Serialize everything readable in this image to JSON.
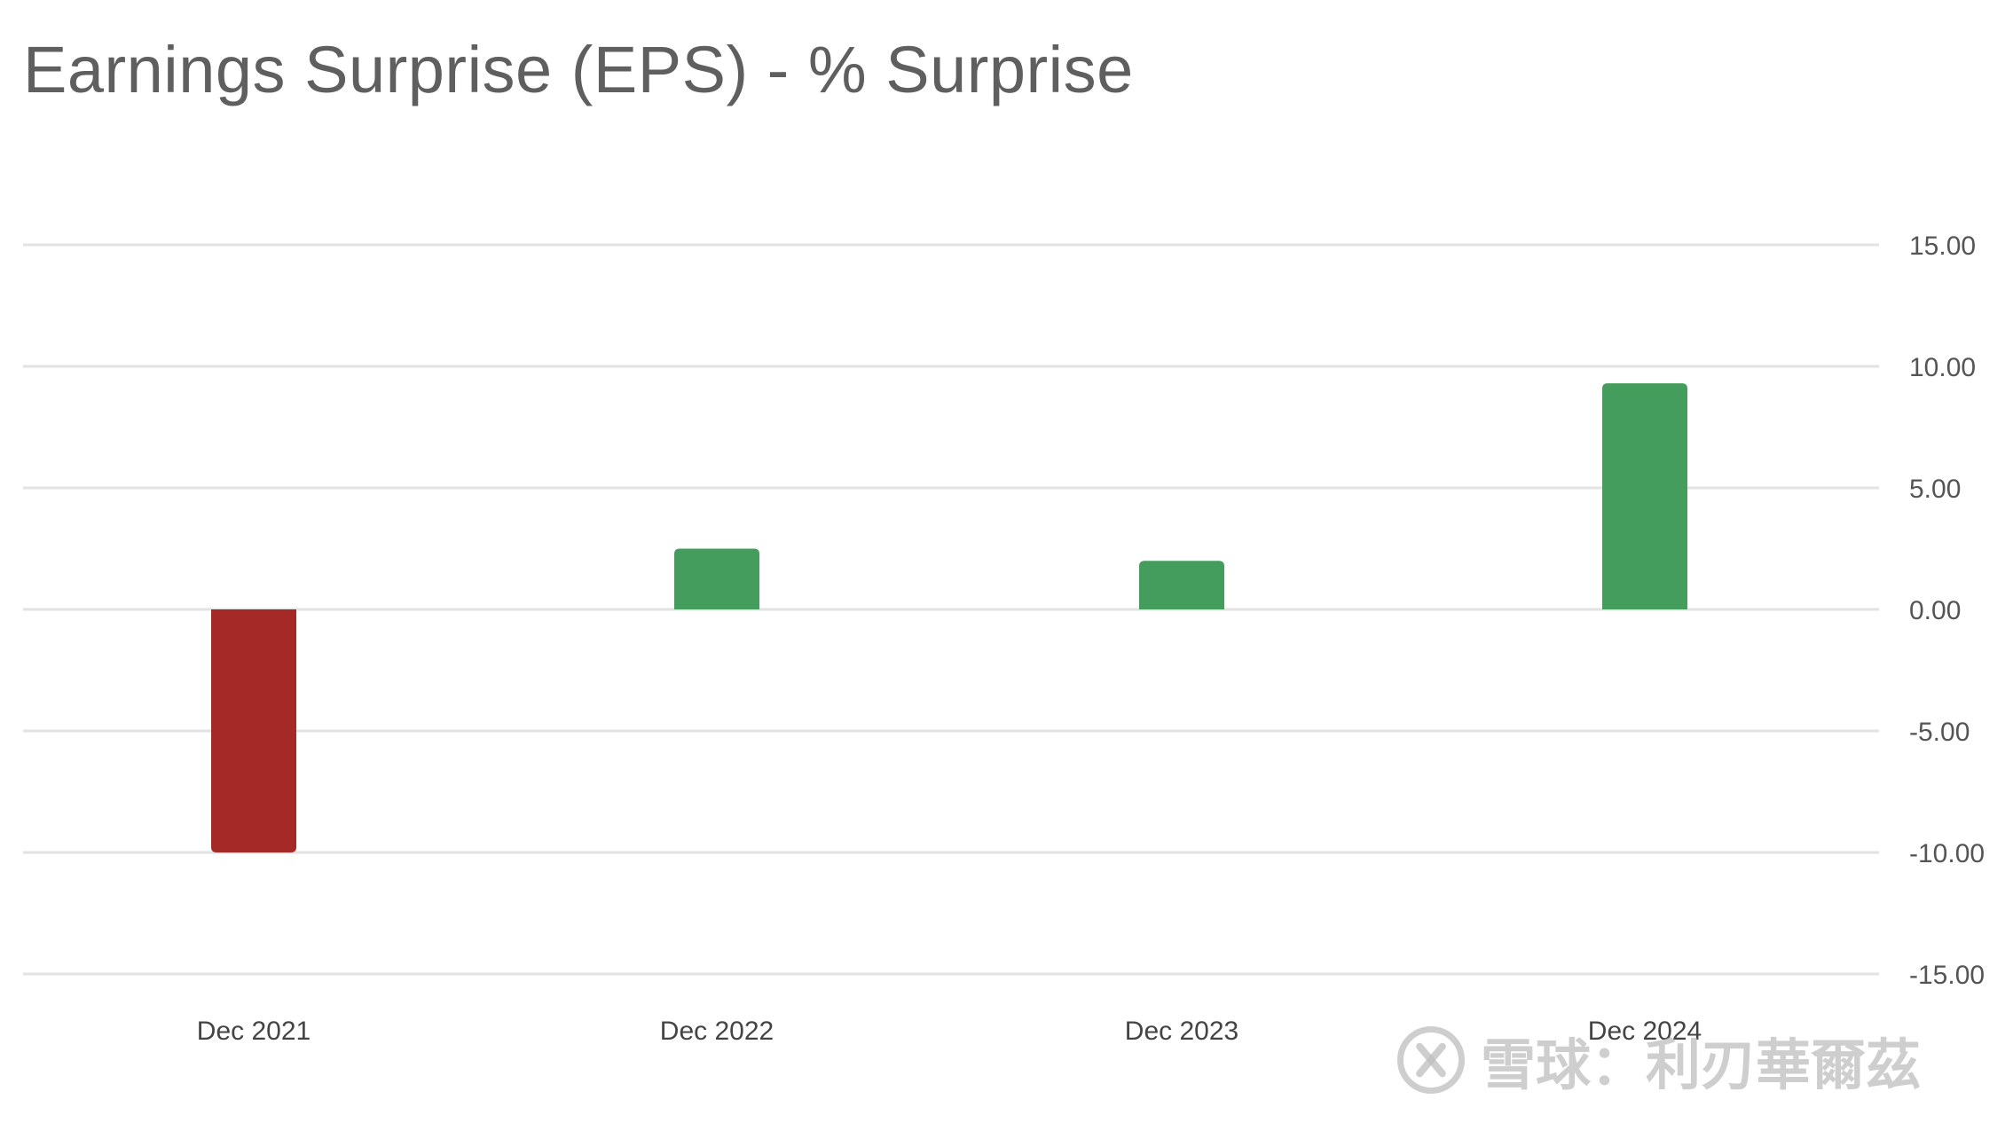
{
  "chart_data": {
    "type": "bar",
    "title": "Earnings Surprise (EPS) - % Surprise",
    "categories": [
      "Dec 2021",
      "Dec 2022",
      "Dec 2023",
      "Dec 2024"
    ],
    "values": [
      -10.0,
      2.5,
      2.0,
      9.3
    ],
    "yticks": [
      "15.00",
      "10.00",
      "5.00",
      "0.00",
      "-5.00",
      "-10.00",
      "-15.00"
    ],
    "ylim": [
      -15,
      15
    ],
    "yaxis_position": "right",
    "grid": true,
    "legend": "none",
    "colors": {
      "positive": "#449d5c",
      "negative": "#a52a27",
      "grid": "#e2e2e2"
    }
  },
  "watermark": {
    "text": "雪球：利刃華爾茲",
    "icon": "snowball-logo-icon"
  }
}
